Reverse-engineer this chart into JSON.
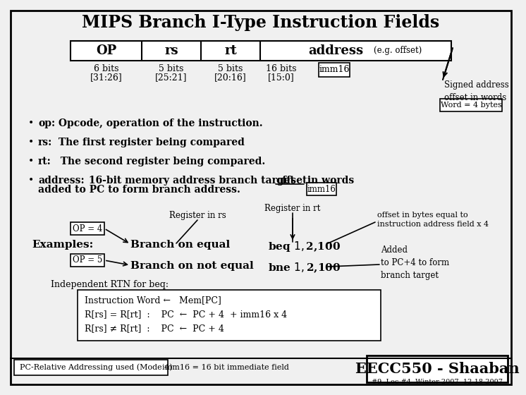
{
  "title": "MIPS Branch I-Type Instruction Fields",
  "bg_color": "#f0f0f0",
  "white": "#ffffff",
  "black": "#000000",
  "imm16_box1": "imm16",
  "imm16_box2": "imm16",
  "signed_addr_text": "Signed address\noffset in words",
  "word_box": "Word = 4 bytes",
  "examples_label": "Examples:",
  "op4_box": "OP = 4",
  "op5_box": "OP = 5",
  "beq_line": "Branch on equal",
  "bne_line": "Branch on not equal",
  "beq_code": "beq $1,$2,100",
  "bne_code": "bne $1,$2,100",
  "reg_rs_label": "Register in rs",
  "reg_rt_label": "Register in rt",
  "offset_label": "offset in bytes equal to\ninstruction address field x 4",
  "added_label": "Added\nto PC+4 to form\nbranch target",
  "rtn_label": "Independent RTN for beq:",
  "rtn_line1": "Instruction Word ←   Mem[PC]",
  "rtn_line2": "R[rs] = R[rt]  :    PC  ←  PC + 4  + imm16 x 4",
  "rtn_line3": "R[rs] ≠ R[rt]  :    PC  ←  PC + 4",
  "bottom_left": "PC-Relative Addressing used (Mode 4)",
  "bottom_mid": "imm16 = 16 bit immediate field",
  "bottom_right": "EECC550 - Shaaban",
  "bottom_footnote": "#9  Lec #4  Winter 2007  12-18-2007"
}
